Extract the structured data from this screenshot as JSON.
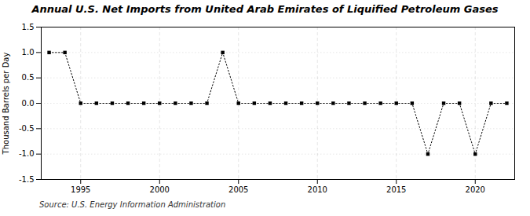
{
  "chart_data": {
    "type": "line",
    "title": "Annual U.S. Net Imports from United Arab Emirates of Liquified Petroleum Gases",
    "ylabel": "Thousand Barrels per Day",
    "source": "Source: U.S. Energy Information Administration",
    "x": [
      1993,
      1994,
      1995,
      1996,
      1997,
      1998,
      1999,
      2000,
      2001,
      2002,
      2003,
      2004,
      2005,
      2006,
      2007,
      2008,
      2009,
      2010,
      2011,
      2012,
      2013,
      2014,
      2015,
      2016,
      2017,
      2018,
      2019,
      2020,
      2021,
      2022
    ],
    "values": [
      1.0,
      1.0,
      0.0,
      0.0,
      0.0,
      0.0,
      0.0,
      0.0,
      0.0,
      0.0,
      0.0,
      1.0,
      0.0,
      0.0,
      0.0,
      0.0,
      0.0,
      0.0,
      0.0,
      0.0,
      0.0,
      0.0,
      0.0,
      0.0,
      -1.0,
      0.0,
      0.0,
      -1.0,
      0.0,
      0.0
    ],
    "xlim": [
      1992.5,
      2022.5
    ],
    "xticks": [
      1995,
      2000,
      2005,
      2010,
      2015,
      2020
    ],
    "ylim": [
      -1.5,
      1.5
    ],
    "yticks": [
      -1.5,
      {
        "value": -1.0,
        "label": "-1.0"
      },
      -0.5,
      {
        "value": 0.0,
        "label": "0.0"
      },
      0.5,
      {
        "value": 1.0,
        "label": "1.0"
      },
      1.5
    ],
    "grid": true,
    "marker": "square",
    "line_style": "dotted"
  }
}
